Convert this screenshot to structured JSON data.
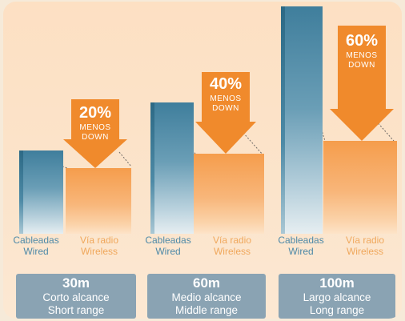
{
  "groups": [
    {
      "percent": "20%",
      "menos": "MENOS",
      "down": "DOWN",
      "wired_es": "Cableadas",
      "wired_en": "Wired",
      "wireless_es": "Vía radio",
      "wireless_en": "Wireless",
      "distance": "30m",
      "range_es": "Corto alcance",
      "range_en": "Short range"
    },
    {
      "percent": "40%",
      "menos": "MENOS",
      "down": "DOWN",
      "wired_es": "Cableadas",
      "wired_en": "Wired",
      "wireless_es": "Vía radio",
      "wireless_en": "Wireless",
      "distance": "60m",
      "range_es": "Medio alcance",
      "range_en": "Middle range"
    },
    {
      "percent": "60%",
      "menos": "MENOS",
      "down": "DOWN",
      "wired_es": "Cableadas",
      "wired_en": "Wired",
      "wireless_es": "Vía radio",
      "wireless_en": "Wireless",
      "distance": "100m",
      "range_es": "Largo alcance",
      "range_en": "Long range"
    }
  ],
  "colors": {
    "wired": "#3f7e9c",
    "wireless": "#f59d4c",
    "arrow": "#f08a2c",
    "range_box": "#8aa3b3"
  }
}
